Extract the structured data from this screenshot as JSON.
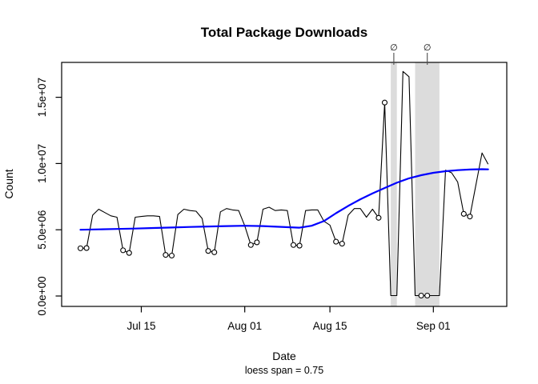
{
  "chart_data": {
    "type": "line",
    "title": "Total Package Downloads",
    "xlabel": "Date",
    "subtitle": "loess span = 0.75",
    "ylabel": "Count",
    "x_tick_labels": [
      "Jul 15",
      "Aug 01",
      "Aug 15",
      "Sep 01"
    ],
    "y_ticks": [
      {
        "value": 0,
        "label": "0.0e+00"
      },
      {
        "value": 5000000,
        "label": "5.0e+06"
      },
      {
        "value": 10000000,
        "label": "1.0e+07"
      },
      {
        "value": 15000000,
        "label": "1.5e+07"
      }
    ],
    "ylim": [
      0,
      17600000
    ],
    "grid": false,
    "legend": "none",
    "empty_symbol": "∅",
    "marker_style": "open circles drawn on weekend days",
    "colors": {
      "series": "#000000",
      "loess": "#0000FF",
      "band": "#DCDCDC",
      "empty_marker": "#8C8C8C",
      "marker_tick": "#4D4D4D",
      "background": "#FFFFFF"
    },
    "points_format": [
      "date",
      "downloads",
      "is_weekend_circled"
    ],
    "points": [
      [
        "Jul 5",
        3600000,
        true
      ],
      [
        "Jul 6",
        3620000,
        true
      ],
      [
        "Jul 7",
        6100000,
        false
      ],
      [
        "Jul 8",
        6550000,
        false
      ],
      [
        "Jul 9",
        6300000,
        false
      ],
      [
        "Jul 10",
        6050000,
        false
      ],
      [
        "Jul 11",
        5950000,
        false
      ],
      [
        "Jul 12",
        3450000,
        true
      ],
      [
        "Jul 13",
        3250000,
        true
      ],
      [
        "Jul 14",
        5950000,
        false
      ],
      [
        "Jul 15",
        6000000,
        false
      ],
      [
        "Jul 16",
        6050000,
        false
      ],
      [
        "Jul 17",
        6050000,
        false
      ],
      [
        "Jul 18",
        6000000,
        false
      ],
      [
        "Jul 19",
        3100000,
        true
      ],
      [
        "Jul 20",
        3050000,
        true
      ],
      [
        "Jul 21",
        6150000,
        false
      ],
      [
        "Jul 22",
        6550000,
        false
      ],
      [
        "Jul 23",
        6450000,
        false
      ],
      [
        "Jul 24",
        6400000,
        false
      ],
      [
        "Jul 25",
        5850000,
        false
      ],
      [
        "Jul 26",
        3400000,
        true
      ],
      [
        "Jul 27",
        3300000,
        true
      ],
      [
        "Jul 28",
        6350000,
        false
      ],
      [
        "Jul 29",
        6600000,
        false
      ],
      [
        "Jul 30",
        6500000,
        false
      ],
      [
        "Jul 31",
        6450000,
        false
      ],
      [
        "Aug 1",
        5300000,
        false
      ],
      [
        "Aug 2",
        3850000,
        true
      ],
      [
        "Aug 3",
        4050000,
        true
      ],
      [
        "Aug 4",
        6550000,
        false
      ],
      [
        "Aug 5",
        6700000,
        false
      ],
      [
        "Aug 6",
        6450000,
        false
      ],
      [
        "Aug 7",
        6500000,
        false
      ],
      [
        "Aug 8",
        6450000,
        false
      ],
      [
        "Aug 9",
        3850000,
        true
      ],
      [
        "Aug 10",
        3800000,
        true
      ],
      [
        "Aug 11",
        6450000,
        false
      ],
      [
        "Aug 12",
        6500000,
        false
      ],
      [
        "Aug 13",
        6500000,
        false
      ],
      [
        "Aug 14",
        5650000,
        false
      ],
      [
        "Aug 15",
        5350000,
        false
      ],
      [
        "Aug 16",
        4100000,
        true
      ],
      [
        "Aug 17",
        3950000,
        true
      ],
      [
        "Aug 18",
        6100000,
        false
      ],
      [
        "Aug 19",
        6600000,
        false
      ],
      [
        "Aug 20",
        6600000,
        false
      ],
      [
        "Aug 21",
        5950000,
        false
      ],
      [
        "Aug 22",
        6550000,
        false
      ],
      [
        "Aug 23",
        5900000,
        true
      ],
      [
        "Aug 24",
        14600000,
        true
      ],
      [
        "Aug 25",
        30000,
        false
      ],
      [
        "Aug 26",
        30000,
        false
      ],
      [
        "Aug 27",
        16950000,
        false
      ],
      [
        "Aug 28",
        16550000,
        false
      ],
      [
        "Aug 29",
        30000,
        false
      ],
      [
        "Aug 30",
        30000,
        true
      ],
      [
        "Aug 31",
        30000,
        true
      ],
      [
        "Sep 1",
        30000,
        false
      ],
      [
        "Sep 2",
        30000,
        false
      ],
      [
        "Sep 3",
        9500000,
        false
      ],
      [
        "Sep 4",
        9300000,
        false
      ],
      [
        "Sep 5",
        8600000,
        false
      ],
      [
        "Sep 6",
        6200000,
        true
      ],
      [
        "Sep 7",
        6000000,
        true
      ],
      [
        "Sep 8",
        8400000,
        false
      ],
      [
        "Sep 9",
        10800000,
        false
      ],
      [
        "Sep 10",
        9950000,
        false
      ]
    ],
    "loess_format": [
      "date",
      "fitted_value"
    ],
    "loess": [
      [
        "Jul 5",
        5000000
      ],
      [
        "Jul 8",
        5030000
      ],
      [
        "Jul 11",
        5060000
      ],
      [
        "Jul 14",
        5090000
      ],
      [
        "Jul 17",
        5130000
      ],
      [
        "Jul 20",
        5170000
      ],
      [
        "Jul 23",
        5210000
      ],
      [
        "Jul 26",
        5250000
      ],
      [
        "Jul 29",
        5280000
      ],
      [
        "Aug 1",
        5300000
      ],
      [
        "Aug 4",
        5280000
      ],
      [
        "Aug 7",
        5220000
      ],
      [
        "Aug 10",
        5160000
      ],
      [
        "Aug 12",
        5300000
      ],
      [
        "Aug 14",
        5650000
      ],
      [
        "Aug 16",
        6250000
      ],
      [
        "Aug 18",
        6800000
      ],
      [
        "Aug 20",
        7300000
      ],
      [
        "Aug 22",
        7750000
      ],
      [
        "Aug 24",
        8150000
      ],
      [
        "Aug 26",
        8550000
      ],
      [
        "Aug 28",
        8880000
      ],
      [
        "Aug 30",
        9120000
      ],
      [
        "Sep 1",
        9300000
      ],
      [
        "Sep 3",
        9420000
      ],
      [
        "Sep 5",
        9500000
      ],
      [
        "Sep 7",
        9550000
      ],
      [
        "Sep 9",
        9570000
      ],
      [
        "Sep 10",
        9560000
      ]
    ],
    "missing_bands": [
      {
        "from": "Aug 25",
        "to": "Aug 26"
      },
      {
        "from": "Aug 29",
        "to": "Sep 2"
      }
    ]
  }
}
